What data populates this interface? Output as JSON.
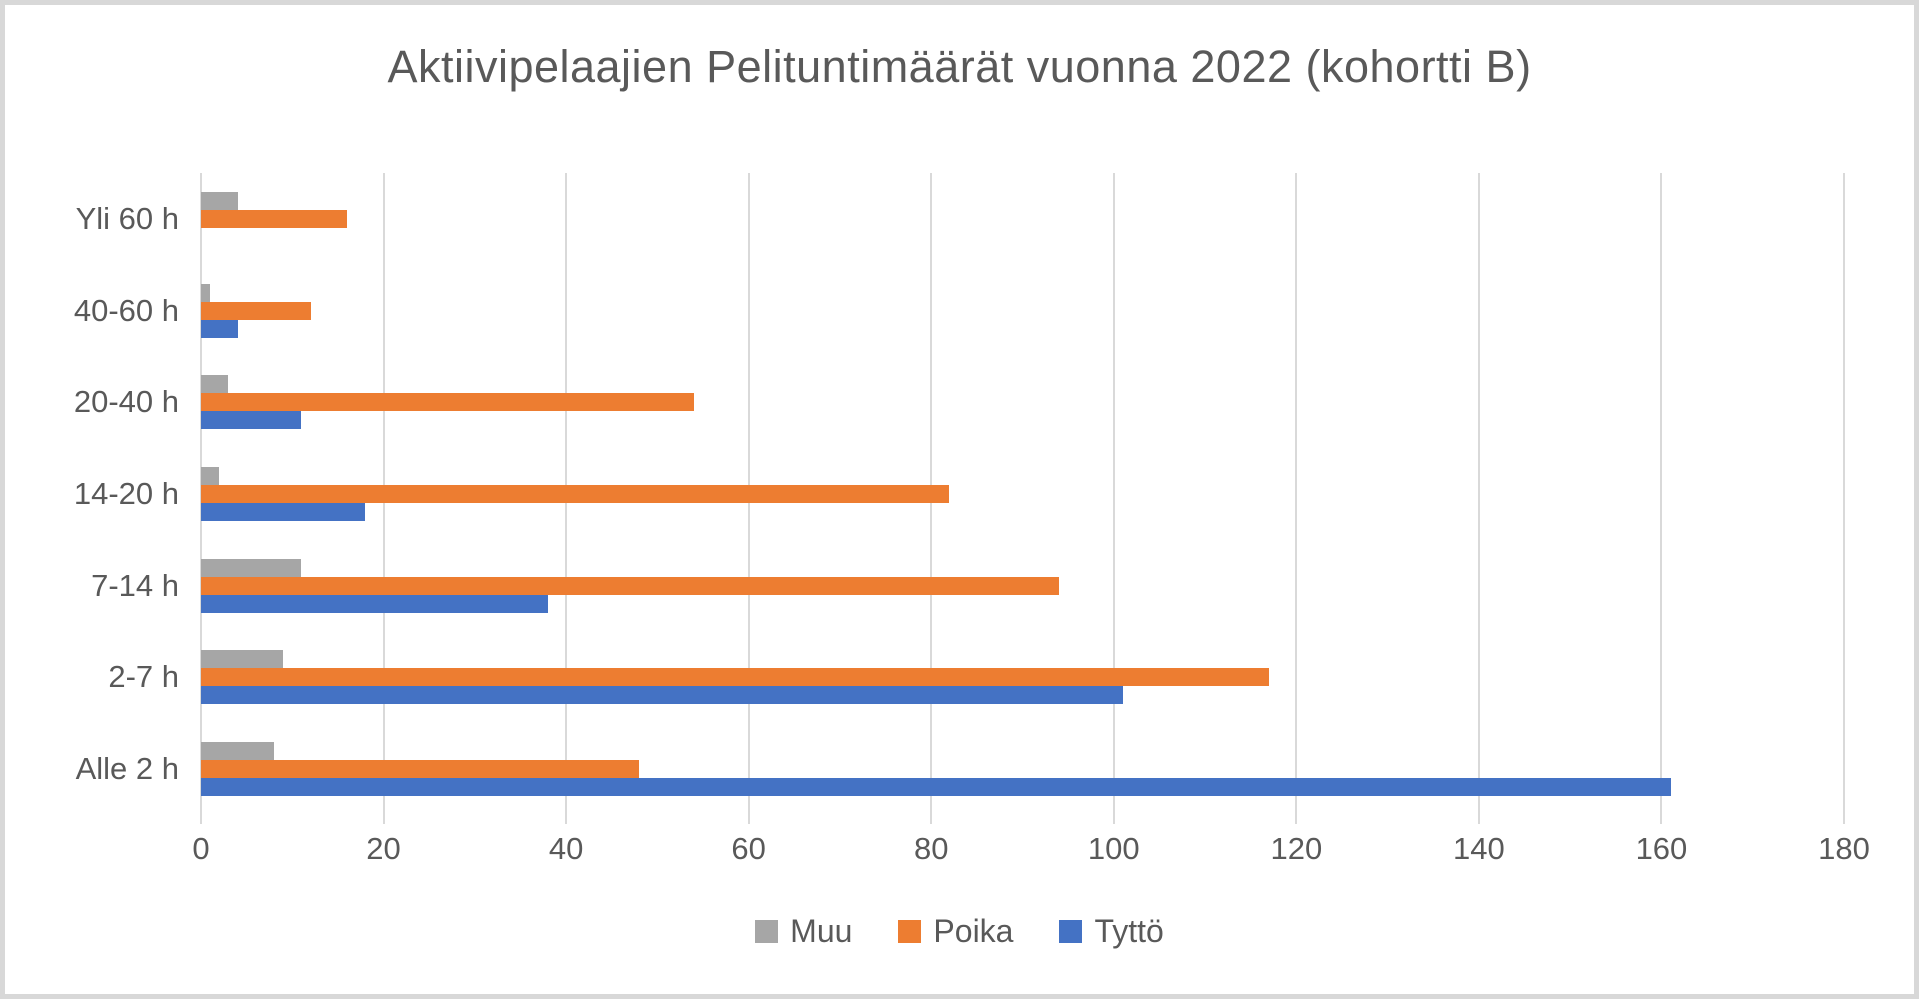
{
  "frame": {
    "background": "#ffffff",
    "border_color": "#d8d8d8"
  },
  "chart_data": {
    "type": "bar",
    "orientation": "horizontal",
    "title": "Aktiivipelaajien Pelituntimäärät vuonna 2022 (kohortti B)",
    "categories_top_to_bottom": [
      "Yli 60 h",
      "40-60 h",
      "20-40 h",
      "14-20 h",
      "7-14 h",
      "2-7 h",
      "Alle 2 h"
    ],
    "series": [
      {
        "name": "Muu",
        "color": "#a6a6a6",
        "values": [
          4,
          1,
          3,
          2,
          11,
          9,
          8
        ]
      },
      {
        "name": "Poika",
        "color": "#ed7d31",
        "values": [
          16,
          12,
          54,
          82,
          94,
          117,
          48
        ]
      },
      {
        "name": "Tyttö",
        "color": "#4472c4",
        "values": [
          0,
          4,
          11,
          18,
          38,
          101,
          161
        ]
      }
    ],
    "xlabel": "",
    "ylabel": "",
    "xlim": [
      0,
      180
    ],
    "x_ticks": [
      0,
      20,
      40,
      60,
      80,
      100,
      120,
      140,
      160,
      180
    ],
    "grid": true,
    "gridline_color": "#d9d9d9",
    "text_color": "#595959",
    "legend_position": "bottom",
    "legend_entries": [
      "Muu",
      "Poika",
      "Tyttö"
    ]
  }
}
